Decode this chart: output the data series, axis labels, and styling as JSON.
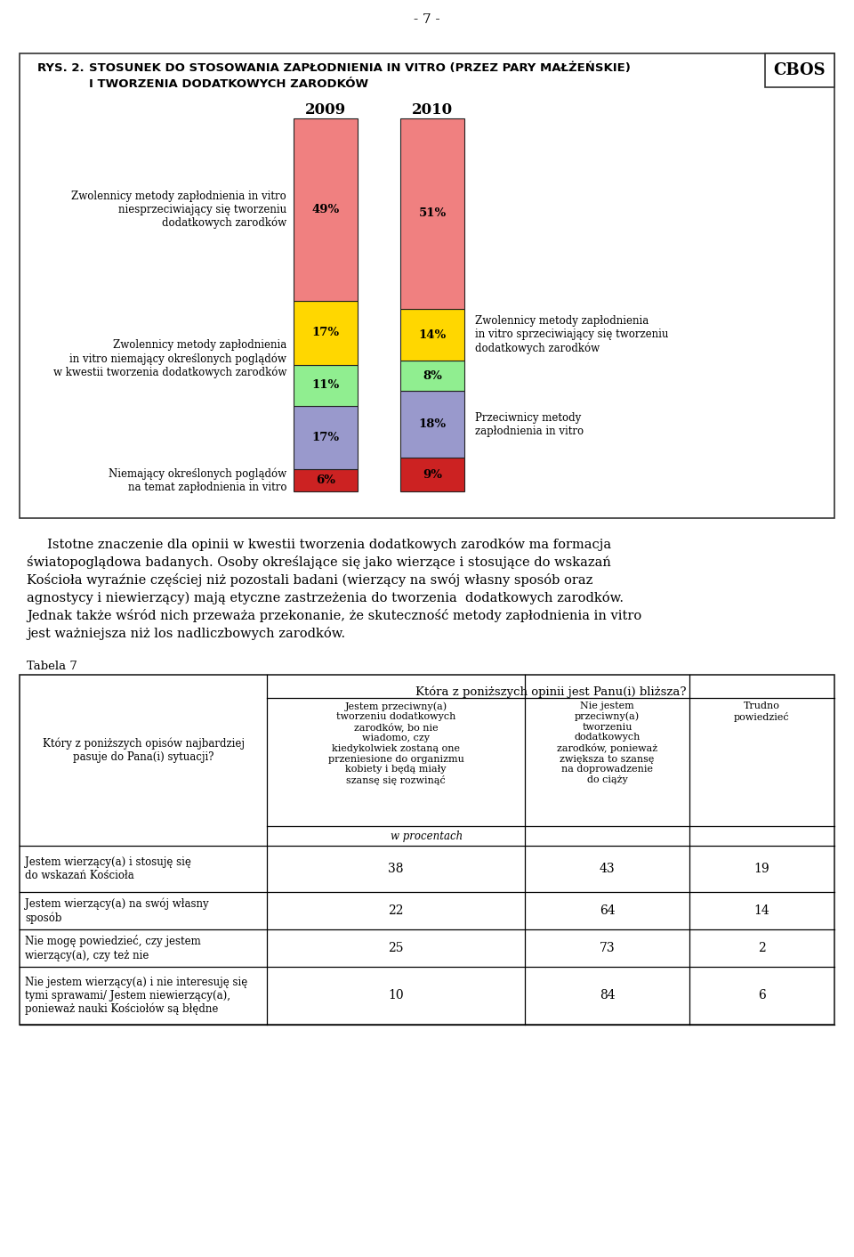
{
  "page_number": "- 7 -",
  "cbos_label": "CBOS",
  "title_prefix": "RYS. 2.",
  "title_line1": "STOSUNEK DO STOSOWANIA ZAPŁODNIENIA IN VITRO (PRZEZ PARY MAŁŻEŃSKIE)",
  "title_line2": "I TWORZENIA DODATKOWYCH ZARODKÓW",
  "years": [
    "2009",
    "2010"
  ],
  "bar_segments_2009": [
    49,
    17,
    11,
    17,
    6
  ],
  "bar_segments_2010": [
    51,
    14,
    8,
    18,
    9
  ],
  "segment_colors": [
    "#F08080",
    "#FFD700",
    "#90EE90",
    "#9999CC",
    "#CC2222"
  ],
  "segment_labels_2009": [
    "49%",
    "17%",
    "11%",
    "17%",
    "6%"
  ],
  "segment_labels_2010": [
    "51%",
    "14%",
    "8%",
    "18%",
    "9%"
  ],
  "paragraph_lines": [
    "     Istotne znaczenie dla opinii w kwestii tworzenia dodatkowych zarodków ma formacja",
    "światopoglądowa badanych. Osoby określające się jako wierzące i stosujące do wskazań",
    "Kościoła wyraźnie częściej niż pozostali badani (wierzący na swój własny sposób oraz",
    "agnostycy i niewierzący) mają etyczne zastrzeżenia do tworzenia  dodatkowych zarodków.",
    "Jednak także wśród nich przeważa przekonanie, że skuteczność metody zapłodnienia in vitro",
    "jest ważniejsza niż los nadliczbowych zarodków."
  ],
  "tabela_label": "Tabela 7",
  "table_header_main": "Która z poniższych opinii jest Panu(i) bliższa?",
  "table_col1_header": "Jestem przeciwny(a)\ntworzeniu dodatkowych\nzarodków, bo nie\nwiadomo, czy\nkiedykolwiek zostaną one\nprzeniesione do organizmu\nkobiety i będą miały\nszansę się rozwinąć",
  "table_col2_header": "Nie jestem\nprzeciwny(a)\ntworzeniu\ndodatkowych\nzarodków, ponieważ\nzwiększa to szansę\nna doprowadzenie\ndo ciąży",
  "table_col3_header": "Trudno\npowiedzieć",
  "table_row_header": "Który z poniższych opisów najbardziej\npasuje do Pana(i) sytuacji?",
  "table_subheader": "w procentach",
  "table_rows": [
    {
      "label": "Jestem wierzący(a) i stosuję się\ndo wskazań Kościoła",
      "col1": "38",
      "col2": "43",
      "col3": "19"
    },
    {
      "label": "Jestem wierzący(a) na swój własny\nsposób",
      "col1": "22",
      "col2": "64",
      "col3": "14"
    },
    {
      "label": "Nie mogę powiedzieć, czy jestem\nwierzący(a), czy też nie",
      "col1": "25",
      "col2": "73",
      "col3": "2"
    },
    {
      "label": "Nie jestem wierzący(a) i nie interesuję się\ntymi sprawami/ Jestem niewierzący(a),\nponieważ nauki Kościołów są błędne",
      "col1": "10",
      "col2": "84",
      "col3": "6"
    }
  ],
  "background_color": "#ffffff"
}
